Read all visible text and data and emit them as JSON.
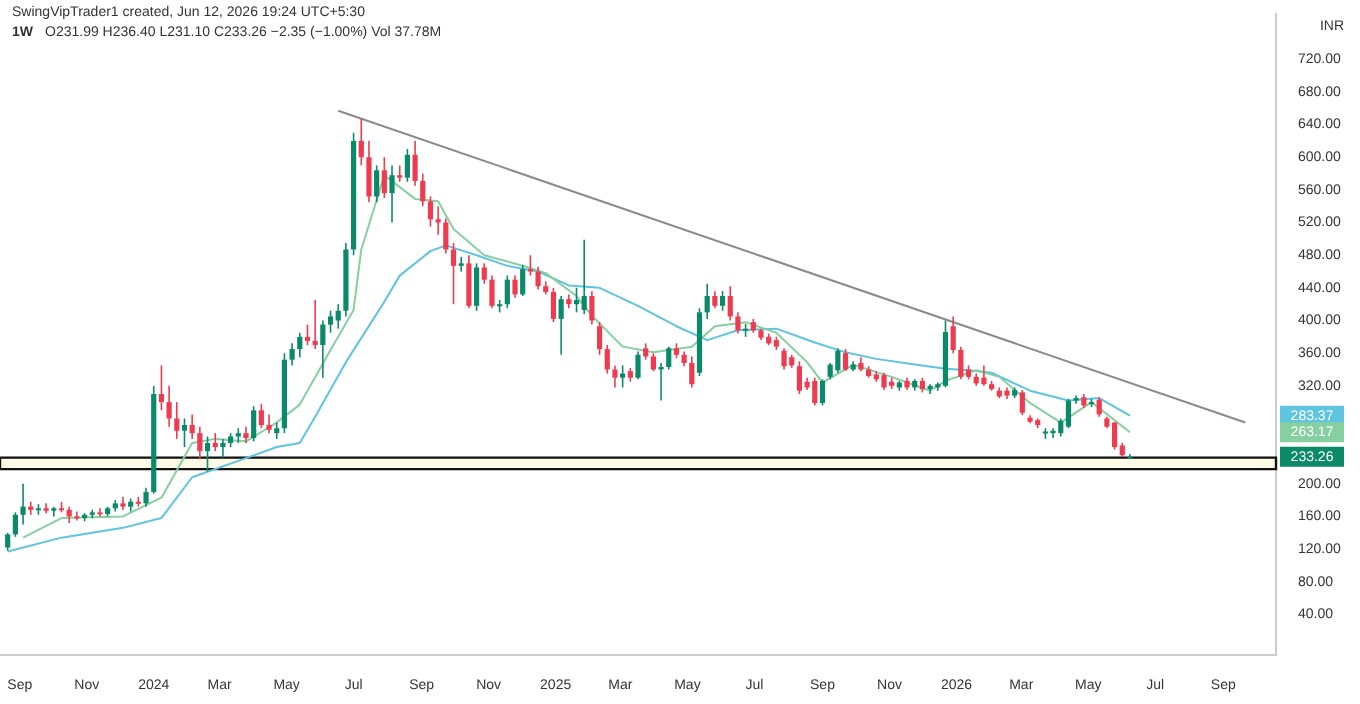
{
  "chart_data": {
    "type": "candlestick",
    "title": "1W",
    "subtitle": "O231.99 H236.40 L231.10 C233.26 −2.35 (−1.00%)  Vol 37.78M",
    "ylabel": "INR",
    "annotations": [
      "SwingVipTrader1 created, Jun 12, 2026 19:24 UTC+5:30",
      {
        "text": "283.37",
        "y": 283.37
      },
      {
        "text": "263.17",
        "y": 263.17
      },
      {
        "text": "233.26",
        "y": 233.26
      }
    ],
    "x": [
      "2023-08-21",
      "2023-08-28",
      "2023-09-04",
      "2023-09-11",
      "2023-09-18",
      "2023-09-25",
      "2023-10-02",
      "2023-10-09",
      "2023-10-16",
      "2023-10-23",
      "2023-10-30",
      "2023-11-06",
      "2023-11-13",
      "2023-11-20",
      "2023-11-27",
      "2023-12-04",
      "2023-12-11",
      "2023-12-18",
      "2023-12-25",
      "2024-01-01",
      "2024-01-08",
      "2024-01-15",
      "2024-01-22",
      "2024-01-29",
      "2024-02-05",
      "2024-02-12",
      "2024-02-19",
      "2024-02-26",
      "2024-03-04",
      "2024-03-11",
      "2024-03-18",
      "2024-03-25",
      "2024-04-01",
      "2024-04-08",
      "2024-04-15",
      "2024-04-22",
      "2024-04-29",
      "2024-05-06",
      "2024-05-13",
      "2024-05-20",
      "2024-05-27",
      "2024-06-03",
      "2024-06-10",
      "2024-06-17",
      "2024-06-24",
      "2024-07-01",
      "2024-07-08",
      "2024-07-15",
      "2024-07-22",
      "2024-07-29",
      "2024-08-05",
      "2024-08-12",
      "2024-08-19",
      "2024-08-26",
      "2024-09-02",
      "2024-09-09",
      "2024-09-16",
      "2024-09-23",
      "2024-09-30",
      "2024-10-07",
      "2024-10-14",
      "2024-10-21",
      "2024-10-28",
      "2024-11-04",
      "2024-11-11",
      "2024-11-18",
      "2024-11-25",
      "2024-12-02",
      "2024-12-09",
      "2024-12-16",
      "2024-12-23",
      "2024-12-30",
      "2025-01-06",
      "2025-01-13",
      "2025-01-20",
      "2025-01-27",
      "2025-02-03",
      "2025-02-10",
      "2025-02-17",
      "2025-02-24",
      "2025-03-03",
      "2025-03-10",
      "2025-03-17",
      "2025-03-24",
      "2025-03-31",
      "2025-04-07",
      "2025-04-14",
      "2025-04-21",
      "2025-04-28",
      "2025-05-05",
      "2025-05-12",
      "2025-05-19",
      "2025-05-26",
      "2025-06-02",
      "2025-06-09",
      "2025-06-16",
      "2025-06-23",
      "2025-06-30",
      "2025-07-07",
      "2025-07-14",
      "2025-07-21",
      "2025-07-28",
      "2025-08-04",
      "2025-08-11",
      "2025-08-18",
      "2025-08-25",
      "2025-09-01",
      "2025-09-08",
      "2025-09-15",
      "2025-09-22",
      "2025-09-29",
      "2025-10-06",
      "2025-10-13",
      "2025-10-20",
      "2025-10-27",
      "2025-11-03",
      "2025-11-10",
      "2025-11-17",
      "2025-11-24",
      "2025-12-01",
      "2025-12-08",
      "2025-12-15",
      "2025-12-22",
      "2025-12-29",
      "2026-01-05",
      "2026-01-12",
      "2026-01-19",
      "2026-01-26",
      "2026-02-02",
      "2026-02-09",
      "2026-02-16",
      "2026-02-23",
      "2026-03-02",
      "2026-03-09",
      "2026-03-16",
      "2026-03-23",
      "2026-03-30",
      "2026-04-06",
      "2026-04-13",
      "2026-04-20",
      "2026-04-27",
      "2026-05-04",
      "2026-05-11",
      "2026-05-18",
      "2026-05-25",
      "2026-06-01",
      "2026-06-08"
    ],
    "ohlc": [
      [
        122,
        140,
        118,
        138
      ],
      [
        138,
        165,
        135,
        162
      ],
      [
        162,
        200,
        150,
        172
      ],
      [
        172,
        178,
        162,
        168
      ],
      [
        168,
        175,
        162,
        170
      ],
      [
        170,
        176,
        164,
        167
      ],
      [
        167,
        172,
        160,
        170
      ],
      [
        170,
        178,
        165,
        168
      ],
      [
        168,
        172,
        152,
        160
      ],
      [
        160,
        166,
        155,
        158
      ],
      [
        158,
        164,
        154,
        162
      ],
      [
        162,
        168,
        158,
        165
      ],
      [
        165,
        170,
        160,
        163
      ],
      [
        163,
        172,
        160,
        170
      ],
      [
        170,
        180,
        166,
        176
      ],
      [
        176,
        184,
        168,
        172
      ],
      [
        172,
        182,
        166,
        178
      ],
      [
        178,
        184,
        172,
        176
      ],
      [
        176,
        195,
        172,
        190
      ],
      [
        190,
        320,
        188,
        310
      ],
      [
        310,
        345,
        290,
        300
      ],
      [
        300,
        320,
        270,
        280
      ],
      [
        280,
        300,
        255,
        265
      ],
      [
        265,
        280,
        245,
        272
      ],
      [
        272,
        285,
        255,
        262
      ],
      [
        262,
        270,
        230,
        240
      ],
      [
        240,
        258,
        215,
        250
      ],
      [
        250,
        262,
        240,
        245
      ],
      [
        245,
        255,
        232,
        250
      ],
      [
        250,
        262,
        245,
        258
      ],
      [
        258,
        268,
        250,
        262
      ],
      [
        262,
        270,
        250,
        256
      ],
      [
        256,
        295,
        252,
        290
      ],
      [
        290,
        298,
        268,
        272
      ],
      [
        272,
        285,
        262,
        266
      ],
      [
        262,
        275,
        255,
        268
      ],
      [
        268,
        360,
        262,
        352
      ],
      [
        352,
        372,
        345,
        365
      ],
      [
        365,
        385,
        355,
        380
      ],
      [
        380,
        395,
        370,
        375
      ],
      [
        375,
        425,
        365,
        370
      ],
      [
        370,
        400,
        330,
        395
      ],
      [
        395,
        412,
        385,
        405
      ],
      [
        400,
        420,
        390,
        412
      ],
      [
        412,
        495,
        405,
        487
      ],
      [
        487,
        630,
        480,
        620
      ],
      [
        620,
        647,
        590,
        600
      ],
      [
        600,
        620,
        545,
        552
      ],
      [
        552,
        590,
        545,
        584
      ],
      [
        584,
        600,
        550,
        556
      ],
      [
        556,
        590,
        520,
        578
      ],
      [
        578,
        590,
        570,
        575
      ],
      [
        575,
        610,
        570,
        603
      ],
      [
        603,
        620,
        565,
        571
      ],
      [
        571,
        580,
        540,
        546
      ],
      [
        546,
        552,
        515,
        524
      ],
      [
        524,
        540,
        505,
        520
      ],
      [
        520,
        525,
        482,
        487
      ],
      [
        487,
        495,
        420,
        467
      ],
      [
        467,
        478,
        460,
        470
      ],
      [
        470,
        480,
        415,
        418
      ],
      [
        418,
        470,
        412,
        465
      ],
      [
        465,
        470,
        445,
        450
      ],
      [
        450,
        455,
        415,
        418
      ],
      [
        418,
        425,
        410,
        420
      ],
      [
        420,
        455,
        415,
        450
      ],
      [
        450,
        455,
        428,
        432
      ],
      [
        432,
        468,
        430,
        463
      ],
      [
        463,
        480,
        455,
        460
      ],
      [
        460,
        466,
        438,
        442
      ],
      [
        442,
        448,
        432,
        435
      ],
      [
        435,
        440,
        398,
        402
      ],
      [
        402,
        430,
        358,
        426
      ],
      [
        426,
        432,
        415,
        420
      ],
      [
        420,
        440,
        410,
        425
      ],
      [
        413,
        499,
        408,
        430
      ],
      [
        430,
        436,
        395,
        400
      ],
      [
        393,
        398,
        358,
        365
      ],
      [
        365,
        370,
        335,
        340
      ],
      [
        340,
        345,
        318,
        330
      ],
      [
        330,
        345,
        318,
        335
      ],
      [
        338,
        342,
        325,
        330
      ],
      [
        330,
        362,
        328,
        358
      ],
      [
        366,
        372,
        352,
        356
      ],
      [
        356,
        360,
        338,
        340
      ],
      [
        340,
        348,
        302,
        343
      ],
      [
        343,
        368,
        340,
        366
      ],
      [
        366,
        372,
        354,
        358
      ],
      [
        358,
        362,
        344,
        348
      ],
      [
        348,
        356,
        318,
        322
      ],
      [
        336,
        415,
        332,
        410
      ],
      [
        410,
        445,
        402,
        430
      ],
      [
        430,
        436,
        415,
        418
      ],
      [
        418,
        436,
        412,
        430
      ],
      [
        430,
        442,
        400,
        405
      ],
      [
        405,
        410,
        384,
        388
      ],
      [
        388,
        396,
        380,
        390
      ],
      [
        398,
        402,
        385,
        388
      ],
      [
        388,
        390,
        376,
        379
      ],
      [
        380,
        384,
        370,
        372
      ],
      [
        376,
        380,
        364,
        368
      ],
      [
        363,
        366,
        340,
        344
      ],
      [
        355,
        358,
        342,
        345
      ],
      [
        344,
        350,
        310,
        314
      ],
      [
        325,
        330,
        315,
        318
      ],
      [
        326,
        330,
        296,
        299
      ],
      [
        299,
        328,
        296,
        326
      ],
      [
        331,
        348,
        328,
        346
      ],
      [
        339,
        366,
        336,
        363
      ],
      [
        360,
        365,
        338,
        340
      ],
      [
        340,
        350,
        338,
        346
      ],
      [
        348,
        355,
        338,
        340
      ],
      [
        340,
        344,
        330,
        332
      ],
      [
        334,
        338,
        325,
        328
      ],
      [
        333,
        336,
        315,
        318
      ],
      [
        325,
        330,
        316,
        320
      ],
      [
        318,
        326,
        314,
        324
      ],
      [
        326,
        330,
        315,
        318
      ],
      [
        318,
        328,
        314,
        326
      ],
      [
        326,
        330,
        312,
        316
      ],
      [
        316,
        322,
        310,
        320
      ],
      [
        318,
        324,
        314,
        322
      ],
      [
        320,
        400,
        318,
        386
      ],
      [
        393,
        405,
        360,
        364
      ],
      [
        364,
        368,
        328,
        331
      ],
      [
        340,
        345,
        328,
        331
      ],
      [
        331,
        335,
        320,
        323
      ],
      [
        330,
        345,
        320,
        322
      ],
      [
        322,
        326,
        314,
        316
      ],
      [
        314,
        318,
        305,
        307
      ],
      [
        314,
        318,
        304,
        308
      ],
      [
        308,
        318,
        305,
        315
      ],
      [
        312,
        315,
        284,
        287
      ],
      [
        281,
        284,
        274,
        276
      ],
      [
        278,
        280,
        268,
        272
      ],
      [
        262,
        268,
        255,
        264
      ],
      [
        262,
        268,
        256,
        265
      ],
      [
        262,
        280,
        258,
        277
      ],
      [
        270,
        304,
        268,
        302
      ],
      [
        302,
        308,
        298,
        305
      ],
      [
        306,
        310,
        293,
        296
      ],
      [
        298,
        304,
        294,
        300
      ],
      [
        303,
        306,
        282,
        285
      ],
      [
        280,
        282,
        268,
        270
      ],
      [
        275,
        276,
        242,
        245
      ],
      [
        247,
        250,
        233,
        235
      ],
      [
        231.99,
        236.4,
        231.1,
        233.26
      ]
    ],
    "series": [
      {
        "type": "line",
        "color": "#86cfa0",
        "x": [
          "2023-09-04",
          "2023-10-09",
          "2023-12-04",
          "2024-01-08",
          "2024-02-05",
          "2024-02-26",
          "2024-03-25",
          "2024-04-22",
          "2024-05-13",
          "2024-06-10",
          "2024-07-01",
          "2024-07-08",
          "2024-07-29",
          "2024-08-26",
          "2024-09-16",
          "2024-09-30",
          "2024-10-28",
          "2024-12-02",
          "2024-12-23",
          "2025-01-20",
          "2025-02-03",
          "2025-03-03",
          "2025-03-31",
          "2025-05-05",
          "2025-05-26",
          "2025-06-23",
          "2025-07-21",
          "2025-08-18",
          "2025-09-01",
          "2025-09-29",
          "2025-11-03",
          "2025-12-08",
          "2025-12-22",
          "2026-01-19",
          "2026-02-09",
          "2026-03-09",
          "2026-04-06",
          "2026-05-04",
          "2026-06-08"
        ],
        "values": [
          134,
          158,
          160,
          183,
          250,
          255,
          252,
          275,
          297,
          364,
          413,
          487,
          578,
          549,
          546,
          512,
          480,
          467,
          458,
          430,
          406,
          368,
          361,
          368,
          393,
          398,
          385,
          349,
          324,
          346,
          331,
          314,
          326,
          339,
          331,
          299,
          275,
          300,
          263.17
        ]
      },
      {
        "type": "line",
        "color": "#5ec4e0",
        "x": [
          "2023-08-21",
          "2023-10-09",
          "2023-12-04",
          "2024-01-08",
          "2024-02-05",
          "2024-03-18",
          "2024-04-22",
          "2024-05-13",
          "2024-05-27",
          "2024-06-24",
          "2024-07-29",
          "2024-08-12",
          "2024-09-09",
          "2024-09-23",
          "2024-10-21",
          "2024-11-18",
          "2024-12-16",
          "2025-01-13",
          "2025-02-10",
          "2025-03-17",
          "2025-04-21",
          "2025-05-19",
          "2025-06-16",
          "2025-07-21",
          "2025-08-25",
          "2025-09-22",
          "2025-10-20",
          "2025-11-24",
          "2025-12-22",
          "2026-01-12",
          "2026-02-02",
          "2026-03-09",
          "2026-04-13",
          "2026-05-11",
          "2026-06-08"
        ],
        "values": [
          117,
          134,
          146,
          158,
          208,
          228,
          245,
          250,
          282,
          349,
          423,
          455,
          485,
          492,
          480,
          467,
          460,
          443,
          440,
          418,
          393,
          376,
          388,
          390,
          373,
          361,
          353,
          346,
          341,
          339,
          336,
          314,
          302,
          305,
          283.37
        ]
      },
      {
        "type": "line",
        "color": "#8a8a8a",
        "x": [
          "2024-06-17",
          "2026-09-21"
        ],
        "values": [
          657,
          275
        ]
      }
    ],
    "bands": [
      {
        "axis": "y",
        "from": 218,
        "to": 232,
        "color": "#fffbe6"
      }
    ],
    "xlim": [
      "2023-08-14",
      "2026-10-19"
    ],
    "ylim": [
      -10,
      775
    ],
    "xticks": [
      {
        "value": "2023-09-01",
        "label": "Sep"
      },
      {
        "value": "2023-11-01",
        "label": "Nov"
      },
      {
        "value": "2024-01-01",
        "label": "2024"
      },
      {
        "value": "2024-03-01",
        "label": "Mar"
      },
      {
        "value": "2024-05-01",
        "label": "May"
      },
      {
        "value": "2024-07-01",
        "label": "Jul"
      },
      {
        "value": "2024-09-01",
        "label": "Sep"
      },
      {
        "value": "2024-11-01",
        "label": "Nov"
      },
      {
        "value": "2025-01-01",
        "label": "2025"
      },
      {
        "value": "2025-03-01",
        "label": "Mar"
      },
      {
        "value": "2025-05-01",
        "label": "May"
      },
      {
        "value": "2025-07-01",
        "label": "Jul"
      },
      {
        "value": "2025-09-01",
        "label": "Sep"
      },
      {
        "value": "2025-11-01",
        "label": "Nov"
      },
      {
        "value": "2026-01-01",
        "label": "2026"
      },
      {
        "value": "2026-03-01",
        "label": "Mar"
      },
      {
        "value": "2026-05-01",
        "label": "May"
      },
      {
        "value": "2026-07-01",
        "label": "Jul"
      },
      {
        "value": "2026-09-01",
        "label": "Sep"
      }
    ],
    "yticks": [
      {
        "value": 40,
        "label": "40.00"
      },
      {
        "value": 80,
        "label": "80.00"
      },
      {
        "value": 120,
        "label": "120.00"
      },
      {
        "value": 160,
        "label": "160.00"
      },
      {
        "value": 200,
        "label": "200.00"
      },
      {
        "value": 320,
        "label": "320.00"
      },
      {
        "value": 360,
        "label": "360.00"
      },
      {
        "value": 400,
        "label": "400.00"
      },
      {
        "value": 440,
        "label": "440.00"
      },
      {
        "value": 480,
        "label": "480.00"
      },
      {
        "value": 520,
        "label": "520.00"
      },
      {
        "value": 560,
        "label": "560.00"
      },
      {
        "value": 600,
        "label": "600.00"
      },
      {
        "value": 640,
        "label": "640.00"
      },
      {
        "value": 680,
        "label": "680.00"
      },
      {
        "value": 720,
        "label": "720.00"
      }
    ]
  }
}
